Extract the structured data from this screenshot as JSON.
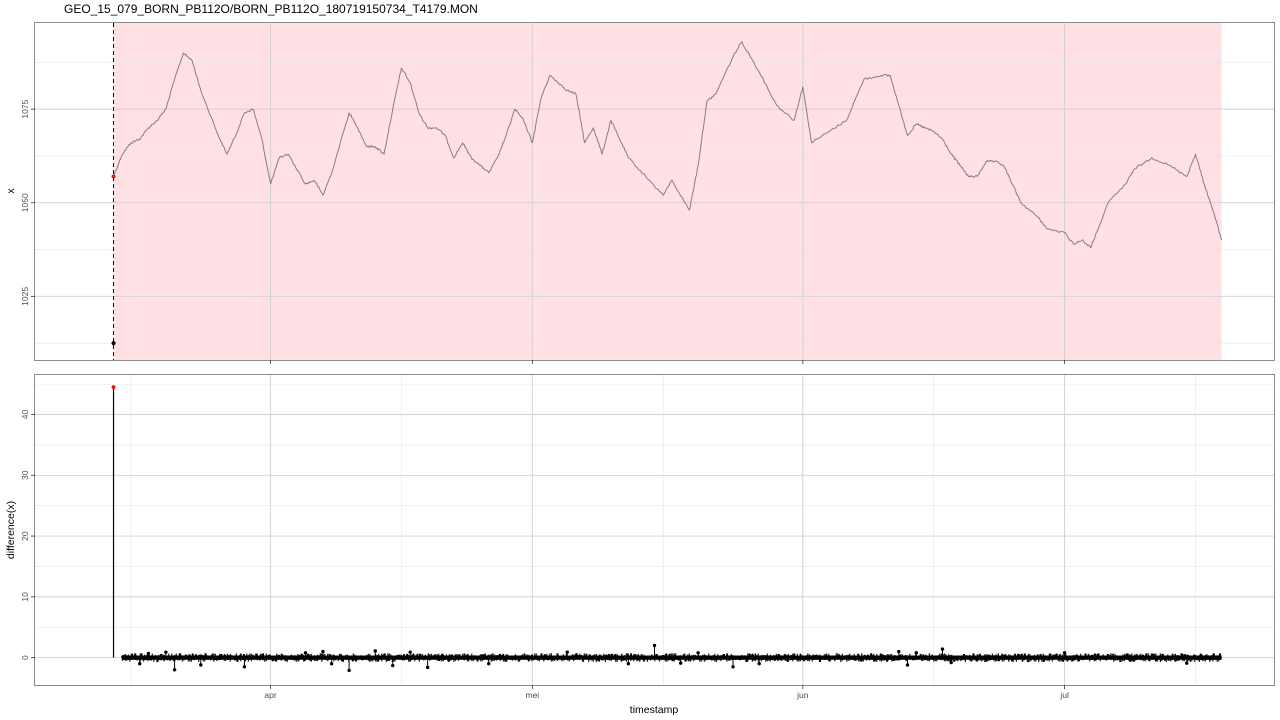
{
  "chart_data": {
    "title": "GEO_15_079_BORN_PB112O/BORN_PB112O_180719150734_T4179.MON",
    "xlabel": "timestamp",
    "x_axis": {
      "type": "date",
      "range": [
        "2018-03-05",
        "2018-07-25"
      ],
      "ticks": [
        {
          "date": "2018-04-01",
          "label": "apr"
        },
        {
          "date": "2018-05-01",
          "label": "mei"
        },
        {
          "date": "2018-06-01",
          "label": "jun"
        },
        {
          "date": "2018-07-01",
          "label": "jul"
        }
      ]
    },
    "panels": [
      {
        "type": "line",
        "ylabel": "x",
        "ylim": [
          1008,
          1098
        ],
        "yticks": [
          1025,
          1050,
          1075
        ],
        "grid": true,
        "shaded_region": {
          "from": "2018-03-14",
          "to": "2018-07-19",
          "color": "#ffe1e5"
        },
        "vertical_marker": {
          "date": "2018-03-14",
          "style": "dashed"
        },
        "line_color": "#8c7b80",
        "highlight_points": [
          {
            "date": "2018-03-14",
            "value": 1057,
            "color": "#e31a1c"
          },
          {
            "date": "2018-03-14",
            "value": 1012.5,
            "color": "#000000"
          }
        ],
        "series": {
          "x": [
            "2018-03-14",
            "2018-03-15",
            "2018-03-16",
            "2018-03-17",
            "2018-03-18",
            "2018-03-19",
            "2018-03-20",
            "2018-03-21",
            "2018-03-22",
            "2018-03-23",
            "2018-03-24",
            "2018-03-26",
            "2018-03-27",
            "2018-03-28",
            "2018-03-29",
            "2018-03-30",
            "2018-03-31",
            "2018-04-01",
            "2018-04-02",
            "2018-04-03",
            "2018-04-05",
            "2018-04-06",
            "2018-04-07",
            "2018-04-08",
            "2018-04-10",
            "2018-04-11",
            "2018-04-12",
            "2018-04-13",
            "2018-04-14",
            "2018-04-15",
            "2018-04-16",
            "2018-04-17",
            "2018-04-18",
            "2018-04-19",
            "2018-04-20",
            "2018-04-21",
            "2018-04-22",
            "2018-04-23",
            "2018-04-24",
            "2018-04-25",
            "2018-04-26",
            "2018-04-27",
            "2018-04-28",
            "2018-04-29",
            "2018-04-30",
            "2018-05-01",
            "2018-05-02",
            "2018-05-03",
            "2018-05-04",
            "2018-05-05",
            "2018-05-06",
            "2018-05-07",
            "2018-05-08",
            "2018-05-09",
            "2018-05-10",
            "2018-05-11",
            "2018-05-12",
            "2018-05-14",
            "2018-05-16",
            "2018-05-17",
            "2018-05-19",
            "2018-05-20",
            "2018-05-21",
            "2018-05-22",
            "2018-05-24",
            "2018-05-25",
            "2018-05-27",
            "2018-05-29",
            "2018-05-31",
            "2018-06-01",
            "2018-06-02",
            "2018-06-04",
            "2018-06-06",
            "2018-06-08",
            "2018-06-10",
            "2018-06-11",
            "2018-06-12",
            "2018-06-13",
            "2018-06-14",
            "2018-06-15",
            "2018-06-16",
            "2018-06-17",
            "2018-06-18",
            "2018-06-19",
            "2018-06-20",
            "2018-06-21",
            "2018-06-22",
            "2018-06-23",
            "2018-06-24",
            "2018-06-25",
            "2018-06-26",
            "2018-06-28",
            "2018-06-29",
            "2018-07-01",
            "2018-07-02",
            "2018-07-03",
            "2018-07-04",
            "2018-07-06",
            "2018-07-08",
            "2018-07-09",
            "2018-07-11",
            "2018-07-13",
            "2018-07-15",
            "2018-07-16",
            "2018-07-17",
            "2018-07-18",
            "2018-07-19"
          ],
          "y": [
            1057,
            1063,
            1066,
            1067,
            1070,
            1072,
            1075,
            1083,
            1090,
            1088,
            1080,
            1068,
            1063,
            1068,
            1074,
            1075,
            1067,
            1055,
            1062,
            1063,
            1055,
            1056,
            1052,
            1058,
            1074,
            1070,
            1065,
            1065,
            1063,
            1075,
            1086,
            1082,
            1074,
            1070,
            1070,
            1068,
            1062,
            1066,
            1062,
            1060,
            1058,
            1062,
            1068,
            1075,
            1072,
            1066,
            1078,
            1084,
            1082,
            1080,
            1079,
            1066,
            1070,
            1063,
            1072,
            1067,
            1062,
            1057,
            1052,
            1056,
            1048,
            1060,
            1077,
            1079,
            1089,
            1093,
            1085,
            1076,
            1072,
            1081,
            1066,
            1069,
            1072,
            1083,
            1084,
            1084,
            1076,
            1068,
            1071,
            1070,
            1069,
            1067,
            1063,
            1060,
            1057,
            1057,
            1061,
            1061,
            1060,
            1055,
            1050,
            1046,
            1043,
            1042,
            1039,
            1040,
            1038,
            1050,
            1055,
            1059,
            1062,
            1060,
            1057,
            1063,
            1055,
            1048,
            1040
          ]
        }
      },
      {
        "type": "scatter_stem",
        "ylabel": "difference(x)",
        "ylim": [
          -4.5,
          46.5
        ],
        "yticks": [
          0,
          10,
          20,
          30,
          40
        ],
        "grid": true,
        "outlier": {
          "date": "2018-03-14",
          "value": 44.5,
          "color": "#e31a1c"
        },
        "noise_band": {
          "from": "2018-03-15",
          "to": "2018-07-19",
          "min": -0.8,
          "max": 0.8
        },
        "extreme_points": [
          {
            "date": "2018-03-17",
            "value": -1.0
          },
          {
            "date": "2018-03-18",
            "value": 0.7
          },
          {
            "date": "2018-03-20",
            "value": 0.9
          },
          {
            "date": "2018-03-21",
            "value": -2.0
          },
          {
            "date": "2018-03-24",
            "value": -1.2
          },
          {
            "date": "2018-03-29",
            "value": -1.5
          },
          {
            "date": "2018-04-05",
            "value": 0.8
          },
          {
            "date": "2018-04-07",
            "value": 1.0
          },
          {
            "date": "2018-04-08",
            "value": -1.0
          },
          {
            "date": "2018-04-10",
            "value": -2.1
          },
          {
            "date": "2018-04-13",
            "value": 1.1
          },
          {
            "date": "2018-04-15",
            "value": -1.3
          },
          {
            "date": "2018-04-17",
            "value": 0.9
          },
          {
            "date": "2018-04-19",
            "value": -1.6
          },
          {
            "date": "2018-04-26",
            "value": -1.0
          },
          {
            "date": "2018-05-05",
            "value": 0.9
          },
          {
            "date": "2018-05-12",
            "value": -1.0
          },
          {
            "date": "2018-05-15",
            "value": 2.0
          },
          {
            "date": "2018-05-18",
            "value": -0.9
          },
          {
            "date": "2018-05-20",
            "value": 0.8
          },
          {
            "date": "2018-05-24",
            "value": -1.5
          },
          {
            "date": "2018-05-27",
            "value": -1.0
          },
          {
            "date": "2018-06-12",
            "value": 1.0
          },
          {
            "date": "2018-06-13",
            "value": -1.2
          },
          {
            "date": "2018-06-14",
            "value": 0.8
          },
          {
            "date": "2018-06-17",
            "value": 1.4
          },
          {
            "date": "2018-06-18",
            "value": -0.8
          },
          {
            "date": "2018-07-01",
            "value": 0.8
          },
          {
            "date": "2018-07-15",
            "value": -0.9
          }
        ]
      }
    ]
  }
}
